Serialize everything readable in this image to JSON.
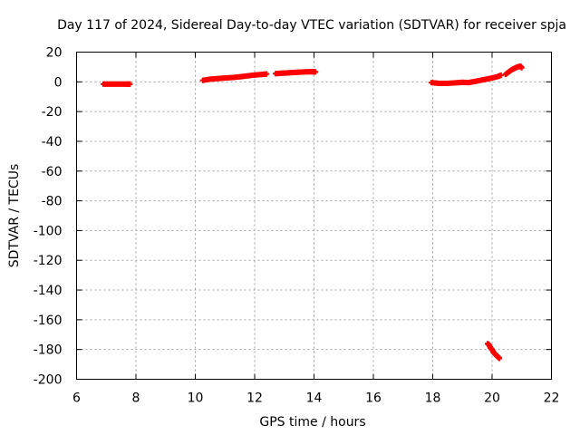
{
  "chart_data": {
    "type": "scatter",
    "title": "Day 117 of 2024, Sidereal Day-to-day VTEC variation (SDTVAR) for receiver spja",
    "xlabel": "GPS time / hours",
    "ylabel": "SDTVAR / TECUs",
    "xlim": [
      6,
      22
    ],
    "ylim": [
      -200,
      20
    ],
    "xticks": [
      6,
      8,
      10,
      12,
      14,
      16,
      18,
      20,
      22
    ],
    "yticks": [
      20,
      0,
      -20,
      -40,
      -60,
      -80,
      -100,
      -120,
      -140,
      -160,
      -180,
      -200
    ],
    "grid": true,
    "marker": "plus",
    "color": "#ff0000",
    "segments": [
      {
        "x": [
          6.9,
          7.1,
          7.3,
          7.5,
          7.7,
          7.8
        ],
        "y": [
          -1.5,
          -1.5,
          -1.5,
          -1.5,
          -1.5,
          -1.5
        ]
      },
      {
        "x": [
          10.25,
          10.5,
          10.75,
          11.0,
          11.25,
          11.5,
          11.75,
          12.0,
          12.25,
          12.4
        ],
        "y": [
          1.0,
          1.8,
          2.2,
          2.6,
          2.9,
          3.4,
          4.0,
          4.6,
          5.0,
          5.3
        ]
      },
      {
        "x": [
          12.7,
          12.9,
          13.1,
          13.3,
          13.5,
          13.7,
          13.9,
          14.05
        ],
        "y": [
          5.5,
          5.8,
          6.0,
          6.3,
          6.5,
          6.7,
          6.8,
          6.7
        ]
      },
      {
        "x": [
          17.95,
          18.2,
          18.5,
          18.8,
          19.0,
          19.2,
          19.4,
          19.6,
          19.8,
          20.0,
          20.2,
          20.3
        ],
        "y": [
          -0.5,
          -1.0,
          -1.0,
          -0.6,
          -0.3,
          -0.5,
          0.2,
          1.0,
          1.8,
          2.6,
          3.6,
          4.5
        ]
      },
      {
        "x": [
          20.45,
          20.55,
          20.65,
          20.75,
          20.85,
          20.95,
          21.0
        ],
        "y": [
          5.0,
          6.5,
          8.0,
          9.0,
          10.0,
          10.5,
          9.5
        ]
      },
      {
        "x": [
          19.85,
          19.9,
          19.95,
          20.0,
          20.05,
          20.1,
          20.15,
          20.2,
          20.25
        ],
        "y": [
          -176,
          -177,
          -179,
          -180,
          -182,
          -183,
          -184,
          -185,
          -186
        ]
      }
    ]
  }
}
